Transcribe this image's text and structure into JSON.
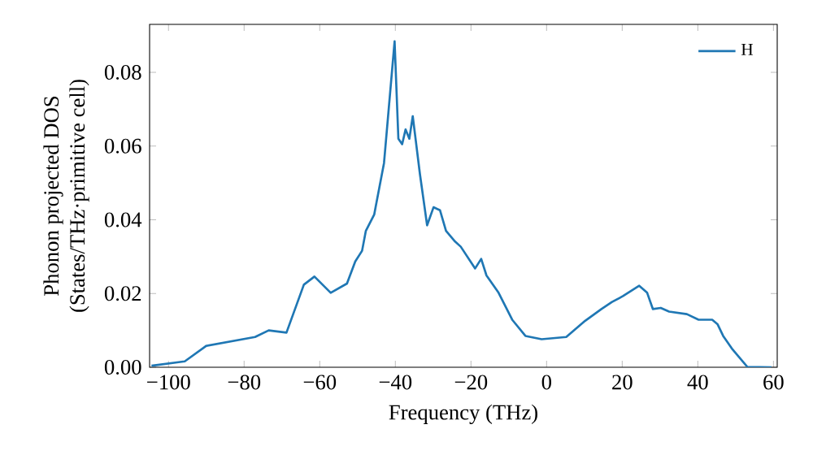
{
  "chart_data": {
    "type": "line",
    "xlabel": "Frequency (THz)",
    "ylabel": "Phonon projected DOS\n(States/THz·primitive cell)",
    "xlim": [
      -105,
      61
    ],
    "ylim": [
      0,
      0.093
    ],
    "xticks": [
      {
        "value": -100,
        "label": "−100"
      },
      {
        "value": -80,
        "label": "−80"
      },
      {
        "value": -60,
        "label": "−60"
      },
      {
        "value": -40,
        "label": "−40"
      },
      {
        "value": -20,
        "label": "−20"
      },
      {
        "value": 0,
        "label": "0"
      },
      {
        "value": 20,
        "label": "20"
      },
      {
        "value": 40,
        "label": "40"
      },
      {
        "value": 60,
        "label": "60"
      }
    ],
    "yticks": [
      {
        "value": 0,
        "label": "0.00"
      },
      {
        "value": 0.02,
        "label": "0.02"
      },
      {
        "value": 0.04,
        "label": "0.04"
      },
      {
        "value": 0.06,
        "label": "0.06"
      },
      {
        "value": 0.08,
        "label": "0.08"
      }
    ],
    "legend": "top right",
    "grid": false,
    "marker": "none",
    "line_style": "solid",
    "series": [
      {
        "name": "H",
        "color": "#1f77b4",
        "x": [
          -104.5,
          -95.7,
          -90,
          -77.1,
          -73.5,
          -68.8,
          -64.2,
          -61.4,
          -57.1,
          -52.8,
          -50.6,
          -48.8,
          -47.8,
          -45.6,
          -43.0,
          -40.2,
          -39.2,
          -38.2,
          -37.3,
          -36.3,
          -35.4,
          -33.5,
          -31.6,
          -29.9,
          -28.2,
          -26.6,
          -24.2,
          -22.7,
          -18.9,
          -17.3,
          -15.9,
          -12.7,
          -9.1,
          -5.6,
          -1.3,
          5.2,
          10.2,
          14.5,
          17.3,
          20.2,
          24.5,
          26.6,
          28.1,
          30.2,
          32.4,
          37.1,
          40.2,
          43.8,
          45.2,
          46.7,
          49.2,
          53.1,
          59.5
        ],
        "values": [
          0.0004,
          0.0016,
          0.0058,
          0.0082,
          0.01,
          0.0094,
          0.0224,
          0.0246,
          0.0202,
          0.0227,
          0.0287,
          0.0316,
          0.037,
          0.0414,
          0.0554,
          0.0884,
          0.062,
          0.0605,
          0.0645,
          0.062,
          0.0681,
          0.0524,
          0.0385,
          0.0434,
          0.0426,
          0.037,
          0.0341,
          0.0327,
          0.0268,
          0.0294,
          0.0249,
          0.0202,
          0.0129,
          0.0085,
          0.0076,
          0.0082,
          0.0126,
          0.0158,
          0.0177,
          0.0193,
          0.0221,
          0.0202,
          0.0158,
          0.0161,
          0.0151,
          0.0144,
          0.0129,
          0.0129,
          0.0117,
          0.0085,
          0.0048,
          0.0001,
          0.0
        ]
      }
    ]
  }
}
